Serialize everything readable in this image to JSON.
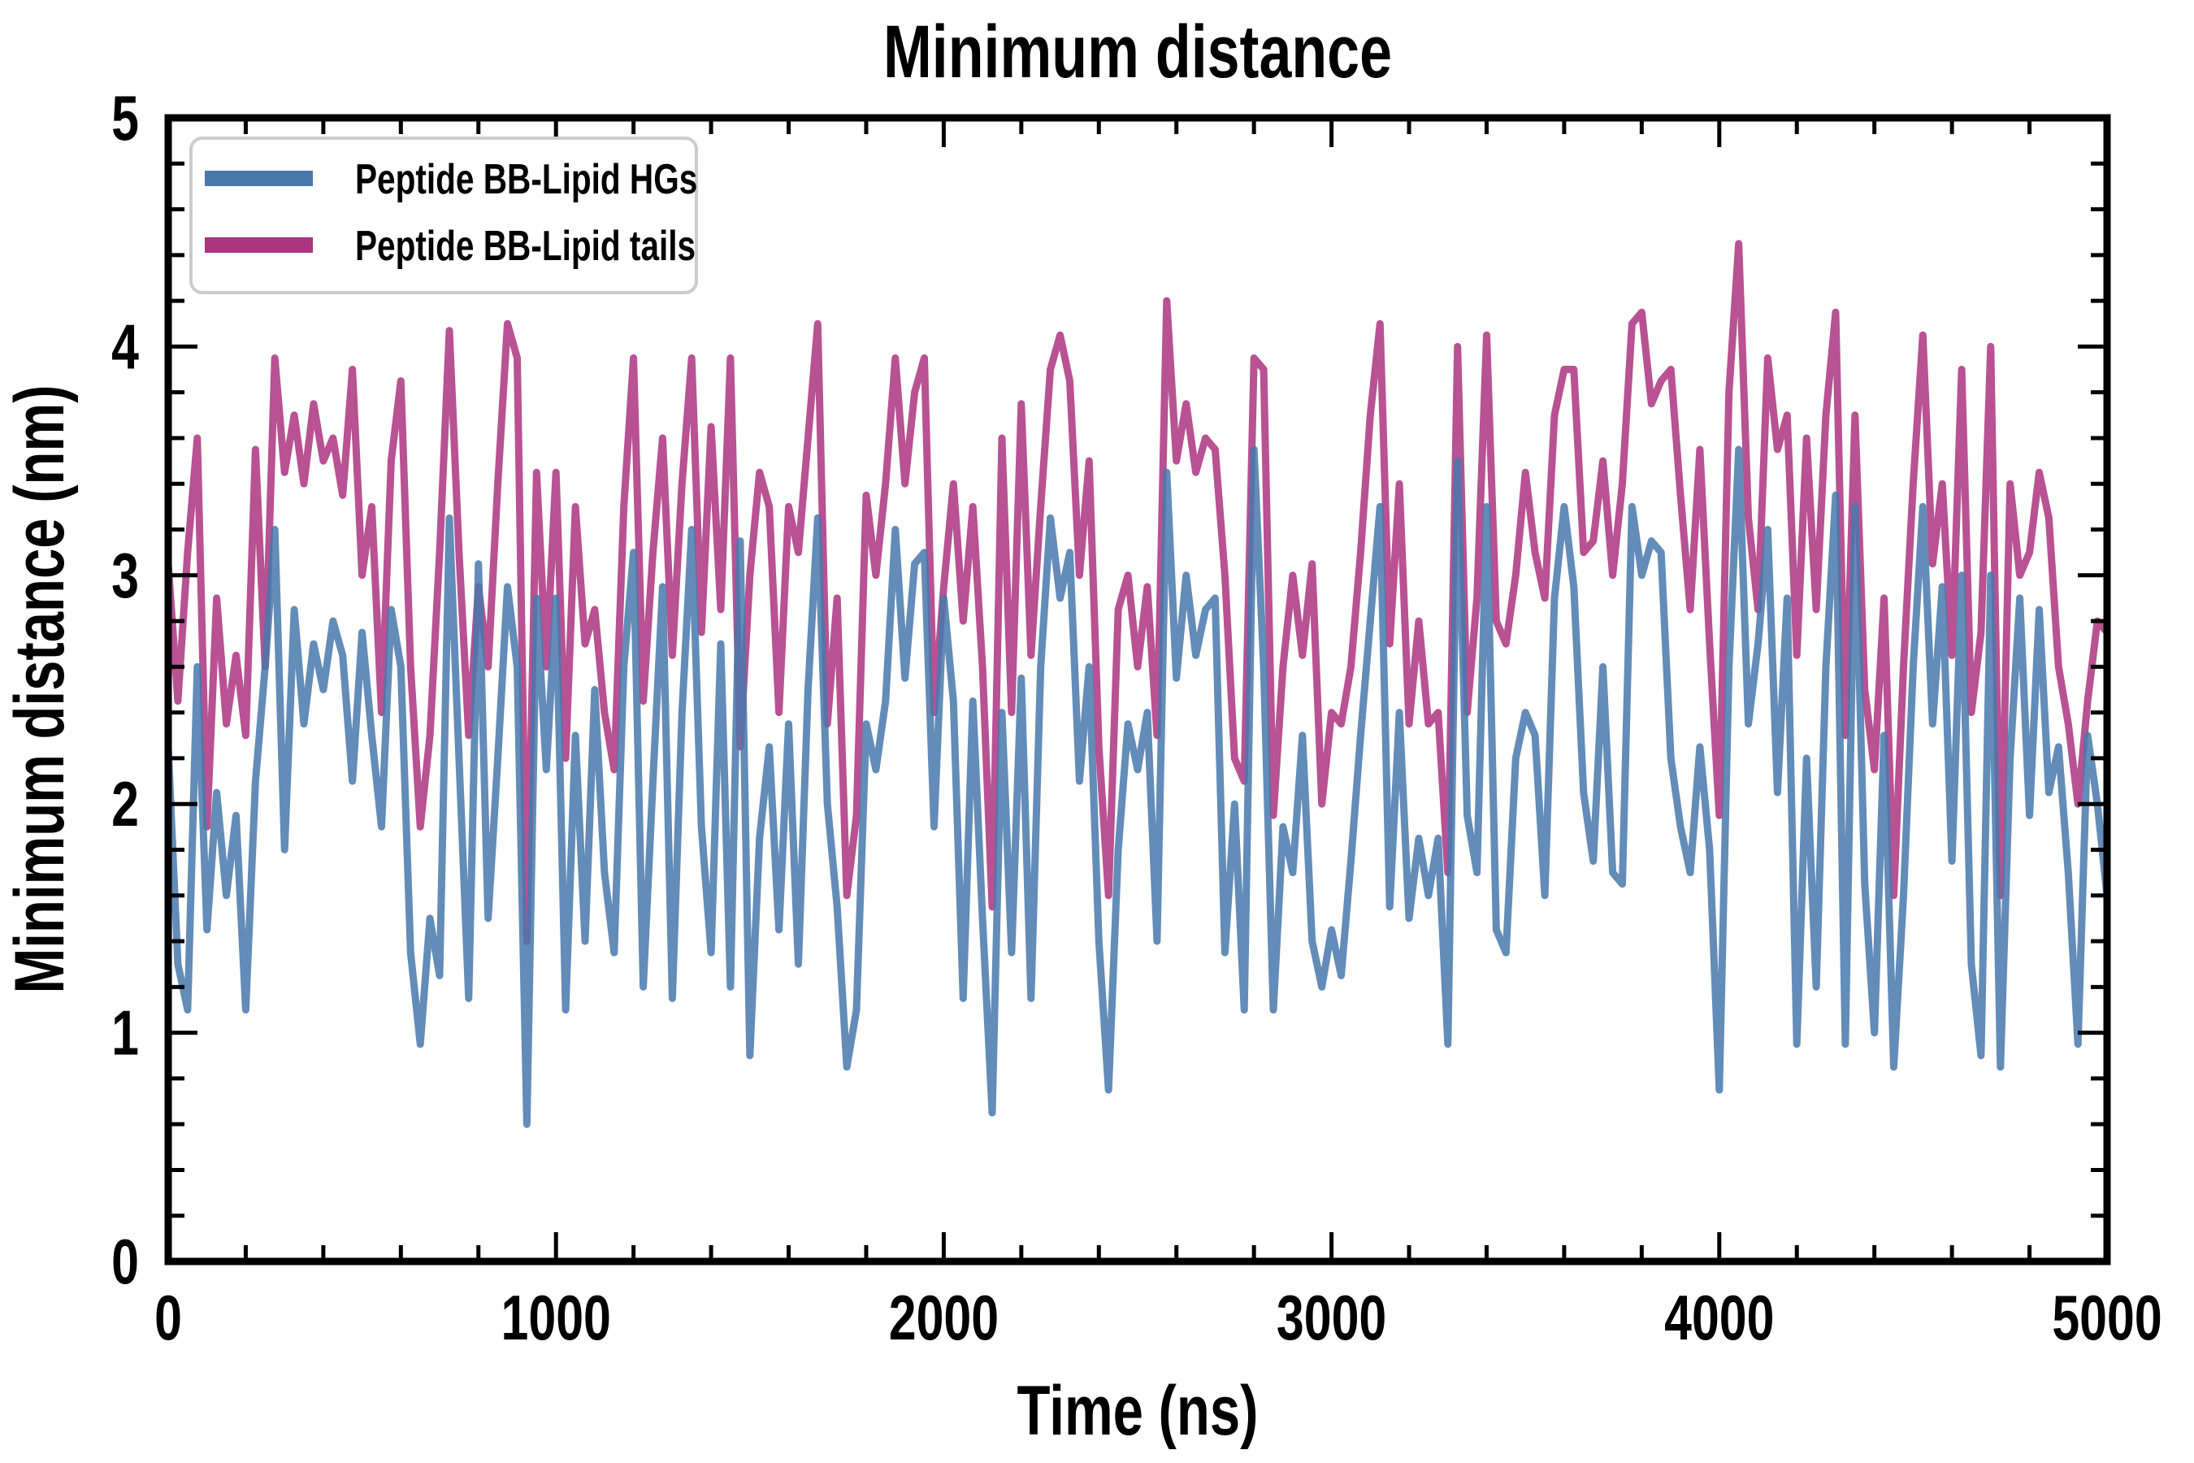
{
  "figure": {
    "background": "#ffffff",
    "axis_color": "#000000",
    "legend_border_color": "#cccccc"
  },
  "chart_data": {
    "type": "line",
    "title": "Minimum distance",
    "xlabel": "Time (ns)",
    "ylabel": "Minimum distance (nm)",
    "xlim": [
      0,
      5000
    ],
    "ylim": [
      0,
      5
    ],
    "xticks": [
      0,
      1000,
      2000,
      3000,
      4000,
      5000
    ],
    "yticks": [
      0,
      1,
      2,
      3,
      4,
      5
    ],
    "x_minor_step": 200,
    "y_minor_step": 0.2,
    "grid": false,
    "legend_position": "upper left",
    "x": [
      0,
      25,
      50,
      75,
      100,
      125,
      150,
      175,
      200,
      225,
      250,
      275,
      300,
      325,
      350,
      375,
      400,
      425,
      450,
      475,
      500,
      525,
      550,
      575,
      600,
      625,
      650,
      675,
      700,
      725,
      750,
      775,
      800,
      825,
      850,
      875,
      900,
      925,
      950,
      975,
      1000,
      1025,
      1050,
      1075,
      1100,
      1125,
      1150,
      1175,
      1200,
      1225,
      1250,
      1275,
      1300,
      1325,
      1350,
      1375,
      1400,
      1425,
      1450,
      1475,
      1500,
      1525,
      1550,
      1575,
      1600,
      1625,
      1650,
      1675,
      1700,
      1725,
      1750,
      1775,
      1800,
      1825,
      1850,
      1875,
      1900,
      1925,
      1950,
      1975,
      2000,
      2025,
      2050,
      2075,
      2100,
      2125,
      2150,
      2175,
      2200,
      2225,
      2250,
      2275,
      2300,
      2325,
      2350,
      2375,
      2400,
      2425,
      2450,
      2475,
      2500,
      2525,
      2550,
      2575,
      2600,
      2625,
      2650,
      2675,
      2700,
      2725,
      2750,
      2775,
      2800,
      2825,
      2850,
      2875,
      2900,
      2925,
      2950,
      2975,
      3000,
      3025,
      3050,
      3075,
      3100,
      3125,
      3150,
      3175,
      3200,
      3225,
      3250,
      3275,
      3300,
      3325,
      3350,
      3375,
      3400,
      3425,
      3450,
      3475,
      3500,
      3525,
      3550,
      3575,
      3600,
      3625,
      3650,
      3675,
      3700,
      3725,
      3750,
      3775,
      3800,
      3825,
      3850,
      3875,
      3900,
      3925,
      3950,
      3975,
      4000,
      4025,
      4050,
      4075,
      4100,
      4125,
      4150,
      4175,
      4200,
      4225,
      4250,
      4275,
      4300,
      4325,
      4350,
      4375,
      4400,
      4425,
      4450,
      4475,
      4500,
      4525,
      4550,
      4575,
      4600,
      4625,
      4650,
      4675,
      4700,
      4725,
      4750,
      4775,
      4800,
      4825,
      4850,
      4875,
      4900,
      4925,
      4950,
      4975,
      5000
    ],
    "series": [
      {
        "name": "Peptide BB-Lipid HGs",
        "color": "#4878ac",
        "opacity": 0.85,
        "values": [
          2.25,
          1.3,
          1.1,
          2.6,
          1.45,
          2.05,
          1.6,
          1.95,
          1.1,
          2.1,
          2.6,
          3.2,
          1.8,
          2.85,
          2.35,
          2.7,
          2.5,
          2.8,
          2.65,
          2.1,
          2.75,
          2.3,
          1.9,
          2.85,
          2.6,
          1.35,
          0.95,
          1.5,
          1.25,
          3.25,
          2.2,
          1.15,
          3.05,
          1.5,
          2.2,
          2.95,
          2.6,
          0.6,
          2.9,
          2.15,
          2.9,
          1.1,
          2.3,
          1.4,
          2.5,
          1.7,
          1.35,
          2.6,
          3.1,
          1.2,
          2.1,
          2.95,
          1.15,
          2.4,
          3.2,
          1.9,
          1.35,
          2.7,
          1.2,
          3.15,
          0.9,
          1.85,
          2.25,
          1.45,
          2.35,
          1.3,
          2.5,
          3.25,
          2.0,
          1.55,
          0.85,
          1.1,
          2.35,
          2.15,
          2.45,
          3.2,
          2.55,
          3.05,
          3.1,
          1.9,
          2.9,
          2.45,
          1.15,
          2.45,
          1.5,
          0.65,
          2.4,
          1.35,
          2.55,
          1.15,
          2.6,
          3.25,
          2.9,
          3.1,
          2.1,
          2.6,
          1.4,
          0.75,
          1.8,
          2.35,
          2.15,
          2.4,
          1.4,
          3.45,
          2.55,
          3.0,
          2.65,
          2.85,
          2.9,
          1.35,
          2.0,
          1.1,
          3.55,
          2.6,
          1.1,
          1.9,
          1.7,
          2.3,
          1.4,
          1.2,
          1.45,
          1.25,
          1.75,
          2.3,
          2.8,
          3.3,
          1.55,
          2.4,
          1.5,
          1.85,
          1.6,
          1.85,
          0.95,
          3.5,
          1.95,
          1.7,
          3.3,
          1.45,
          1.35,
          2.2,
          2.4,
          2.3,
          1.6,
          2.9,
          3.3,
          2.95,
          2.05,
          1.75,
          2.6,
          1.7,
          1.65,
          3.3,
          3.0,
          3.15,
          3.1,
          2.2,
          1.9,
          1.7,
          2.25,
          1.8,
          0.75,
          2.6,
          3.55,
          2.35,
          2.7,
          3.2,
          2.05,
          2.9,
          0.95,
          2.2,
          1.2,
          2.6,
          3.35,
          0.95,
          3.3,
          1.65,
          1.0,
          2.3,
          0.85,
          1.6,
          2.6,
          3.3,
          2.35,
          2.95,
          1.75,
          3.0,
          1.3,
          0.9,
          3.0,
          0.85,
          2.2,
          2.9,
          1.95,
          2.85,
          2.05,
          2.25,
          1.7,
          0.95,
          2.3,
          2.0,
          1.6
        ]
      },
      {
        "name": "Peptide BB-Lipid tails",
        "color": "#ac3480",
        "opacity": 0.85,
        "values": [
          3.05,
          2.45,
          3.1,
          3.6,
          1.9,
          2.9,
          2.35,
          2.65,
          2.3,
          3.55,
          2.6,
          3.95,
          3.45,
          3.7,
          3.4,
          3.75,
          3.5,
          3.6,
          3.35,
          3.9,
          3.0,
          3.3,
          2.4,
          3.5,
          3.85,
          2.6,
          1.9,
          2.3,
          3.1,
          4.07,
          3.1,
          2.3,
          2.95,
          2.6,
          3.4,
          4.1,
          3.95,
          1.4,
          3.45,
          2.6,
          3.45,
          2.2,
          3.3,
          2.7,
          2.85,
          2.4,
          2.15,
          3.3,
          3.95,
          2.45,
          3.1,
          3.6,
          2.65,
          3.4,
          3.95,
          2.75,
          3.65,
          2.85,
          3.95,
          2.25,
          3.0,
          3.45,
          3.3,
          2.4,
          3.3,
          3.1,
          3.6,
          4.1,
          2.35,
          2.9,
          1.6,
          1.95,
          3.35,
          3.0,
          3.4,
          3.95,
          3.4,
          3.8,
          3.95,
          2.4,
          2.95,
          3.4,
          2.8,
          3.3,
          2.6,
          1.55,
          3.6,
          2.4,
          3.75,
          2.65,
          3.3,
          3.9,
          4.05,
          3.85,
          3.0,
          3.5,
          2.25,
          1.6,
          2.85,
          3.0,
          2.6,
          2.95,
          2.3,
          4.2,
          3.5,
          3.75,
          3.45,
          3.6,
          3.55,
          3.0,
          2.2,
          2.1,
          3.95,
          3.9,
          1.95,
          2.6,
          3.0,
          2.65,
          3.05,
          2.0,
          2.4,
          2.35,
          2.6,
          3.1,
          3.7,
          4.1,
          2.7,
          3.4,
          2.35,
          2.8,
          2.35,
          2.4,
          1.7,
          4.0,
          2.4,
          2.9,
          4.05,
          2.8,
          2.7,
          3.0,
          3.45,
          3.1,
          2.9,
          3.7,
          3.9,
          3.9,
          3.1,
          3.15,
          3.5,
          3.0,
          3.4,
          4.1,
          4.15,
          3.75,
          3.85,
          3.9,
          3.35,
          2.85,
          3.55,
          2.7,
          1.95,
          3.8,
          4.45,
          3.25,
          2.85,
          3.95,
          3.55,
          3.7,
          2.65,
          3.6,
          2.85,
          3.7,
          4.15,
          2.3,
          3.7,
          2.5,
          2.15,
          2.9,
          1.6,
          2.6,
          3.4,
          4.05,
          3.05,
          3.4,
          2.65,
          3.9,
          2.4,
          2.75,
          4.0,
          1.6,
          3.4,
          3.0,
          3.1,
          3.45,
          3.25,
          2.6,
          2.35,
          2.0,
          2.45,
          2.8,
          2.75
        ]
      }
    ]
  }
}
